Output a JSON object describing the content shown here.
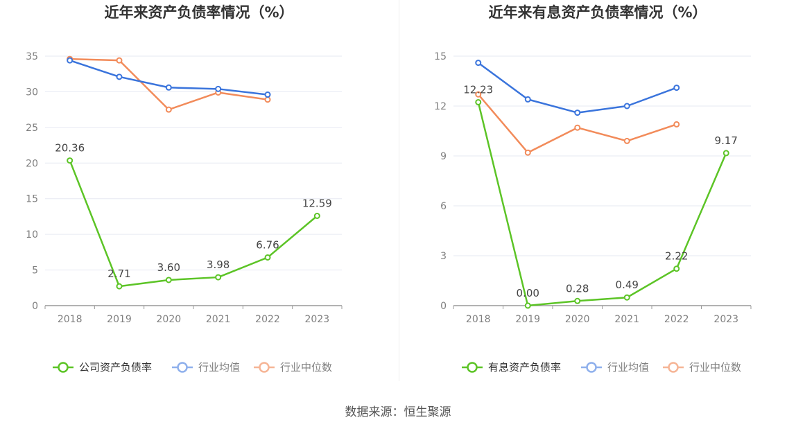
{
  "chart_data": [
    {
      "type": "line",
      "title": "近年来资产负债率情况（%）",
      "categories": [
        "2018",
        "2019",
        "2020",
        "2021",
        "2022",
        "2023"
      ],
      "ylim": [
        0,
        35
      ],
      "yticks": [
        "0",
        "5",
        "10",
        "15",
        "20",
        "25",
        "30",
        "35"
      ],
      "grid": true,
      "legend_position": "bottom",
      "series": [
        {
          "name": "公司资产负债率",
          "color": "#5cc426",
          "values": [
            20.36,
            2.71,
            3.6,
            3.98,
            6.76,
            12.59
          ],
          "labels": [
            "20.36",
            "2.71",
            "3.60",
            "3.98",
            "6.76",
            "12.59"
          ]
        },
        {
          "name": "行业均值",
          "color": "#3a74dc",
          "values": [
            34.4,
            32.1,
            30.6,
            30.4,
            29.6,
            null
          ]
        },
        {
          "name": "行业中位数",
          "color": "#f28b5a",
          "values": [
            34.6,
            34.4,
            27.5,
            29.9,
            28.9,
            null
          ]
        }
      ]
    },
    {
      "type": "line",
      "title": "近年来有息资产负债率情况（%）",
      "categories": [
        "2018",
        "2019",
        "2020",
        "2021",
        "2022",
        "2023"
      ],
      "ylim": [
        0,
        15
      ],
      "yticks": [
        "0",
        "3",
        "6",
        "9",
        "12",
        "15"
      ],
      "grid": true,
      "legend_position": "bottom",
      "series": [
        {
          "name": "有息资产负债率",
          "color": "#5cc426",
          "values": [
            12.23,
            0.0,
            0.28,
            0.49,
            2.22,
            9.17
          ],
          "labels": [
            "12.23",
            "0.00",
            "0.28",
            "0.49",
            "2.22",
            "9.17"
          ]
        },
        {
          "name": "行业均值",
          "color": "#3a74dc",
          "values": [
            14.6,
            12.4,
            11.6,
            12.0,
            13.1,
            null
          ]
        },
        {
          "name": "行业中位数",
          "color": "#f28b5a",
          "values": [
            12.7,
            9.2,
            10.7,
            9.9,
            10.9,
            null
          ]
        }
      ]
    }
  ],
  "footer": {
    "source": "数据来源：恒生聚源"
  }
}
